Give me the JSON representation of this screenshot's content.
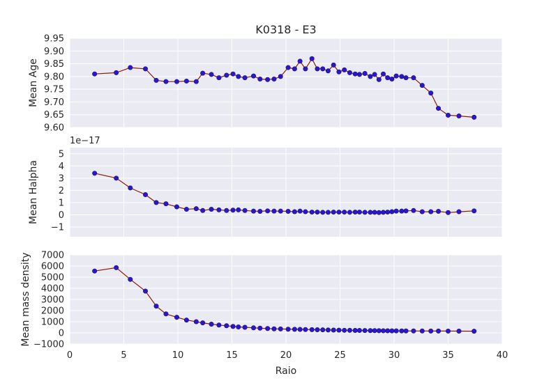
{
  "chart_data": {
    "type": "line",
    "title": "K0318 - E3",
    "xlabel": "Raio",
    "xlim": [
      0,
      40
    ],
    "x_ticks": [
      0,
      5,
      10,
      15,
      20,
      25,
      30,
      35,
      40
    ],
    "grid": true,
    "line_color": "#8b1a00",
    "marker_color": "#2a17c9",
    "background_color": "#eaeaf2",
    "x": [
      2.3,
      4.3,
      5.6,
      7.0,
      8.0,
      8.9,
      9.9,
      10.8,
      11.7,
      12.3,
      13.1,
      13.8,
      14.5,
      15.1,
      15.6,
      16.2,
      17.0,
      17.6,
      18.3,
      18.9,
      19.5,
      20.2,
      20.8,
      21.3,
      21.8,
      22.4,
      22.9,
      23.4,
      23.9,
      24.4,
      24.9,
      25.4,
      25.9,
      26.4,
      26.8,
      27.3,
      27.8,
      28.2,
      28.6,
      29.0,
      29.4,
      29.8,
      30.2,
      30.7,
      31.1,
      31.8,
      32.6,
      33.4,
      34.1,
      35.0,
      36.0,
      37.4
    ],
    "panels": [
      {
        "ylabel": "Mean Age",
        "ylim": [
          9.6,
          9.95
        ],
        "y_ticks": [
          9.6,
          9.65,
          9.7,
          9.75,
          9.8,
          9.85,
          9.9,
          9.95
        ],
        "y_tick_labels": [
          "9.60",
          "9.65",
          "9.70",
          "9.75",
          "9.80",
          "9.85",
          "9.90",
          "9.95"
        ],
        "offset_text": "",
        "values": [
          9.81,
          9.815,
          9.835,
          9.83,
          9.785,
          9.78,
          9.78,
          9.782,
          9.78,
          9.813,
          9.808,
          9.795,
          9.805,
          9.81,
          9.8,
          9.795,
          9.802,
          9.79,
          9.788,
          9.79,
          9.8,
          9.835,
          9.83,
          9.86,
          9.83,
          9.87,
          9.83,
          9.83,
          9.822,
          9.845,
          9.818,
          9.826,
          9.815,
          9.81,
          9.808,
          9.812,
          9.8,
          9.808,
          9.788,
          9.81,
          9.795,
          9.79,
          9.802,
          9.8,
          9.795,
          9.795,
          9.765,
          9.735,
          9.675,
          9.648,
          9.645,
          9.64
        ]
      },
      {
        "ylabel": "Mean Halpha",
        "ylim": [
          -1.8,
          5.5
        ],
        "y_ticks": [
          -1,
          0,
          1,
          2,
          3,
          4,
          5
        ],
        "y_tick_labels": [
          "−1",
          "0",
          "1",
          "2",
          "3",
          "4",
          "5"
        ],
        "offset_text": "1e−17",
        "values": [
          3.4,
          3.0,
          2.2,
          1.65,
          1.0,
          0.9,
          0.65,
          0.45,
          0.5,
          0.35,
          0.45,
          0.4,
          0.35,
          0.38,
          0.4,
          0.35,
          0.3,
          0.28,
          0.32,
          0.3,
          0.3,
          0.28,
          0.25,
          0.3,
          0.25,
          0.22,
          0.22,
          0.2,
          0.2,
          0.22,
          0.22,
          0.22,
          0.2,
          0.22,
          0.22,
          0.2,
          0.2,
          0.2,
          0.18,
          0.2,
          0.22,
          0.25,
          0.3,
          0.3,
          0.32,
          0.35,
          0.25,
          0.25,
          0.28,
          0.18,
          0.25,
          0.32
        ]
      },
      {
        "ylabel": "Mean mass density",
        "ylim": [
          -1000,
          7000
        ],
        "y_ticks": [
          -1000,
          0,
          1000,
          2000,
          3000,
          4000,
          5000,
          6000,
          7000
        ],
        "y_tick_labels": [
          "−1000",
          "0",
          "1000",
          "2000",
          "3000",
          "4000",
          "5000",
          "6000",
          "7000"
        ],
        "offset_text": "",
        "values": [
          5550,
          5850,
          4800,
          3750,
          2400,
          1700,
          1400,
          1150,
          1000,
          900,
          780,
          700,
          640,
          580,
          530,
          500,
          450,
          420,
          390,
          360,
          350,
          330,
          320,
          310,
          300,
          290,
          280,
          270,
          260,
          250,
          240,
          230,
          225,
          220,
          215,
          210,
          205,
          200,
          195,
          190,
          185,
          180,
          178,
          175,
          172,
          170,
          168,
          165,
          162,
          160,
          155,
          150
        ]
      }
    ]
  }
}
